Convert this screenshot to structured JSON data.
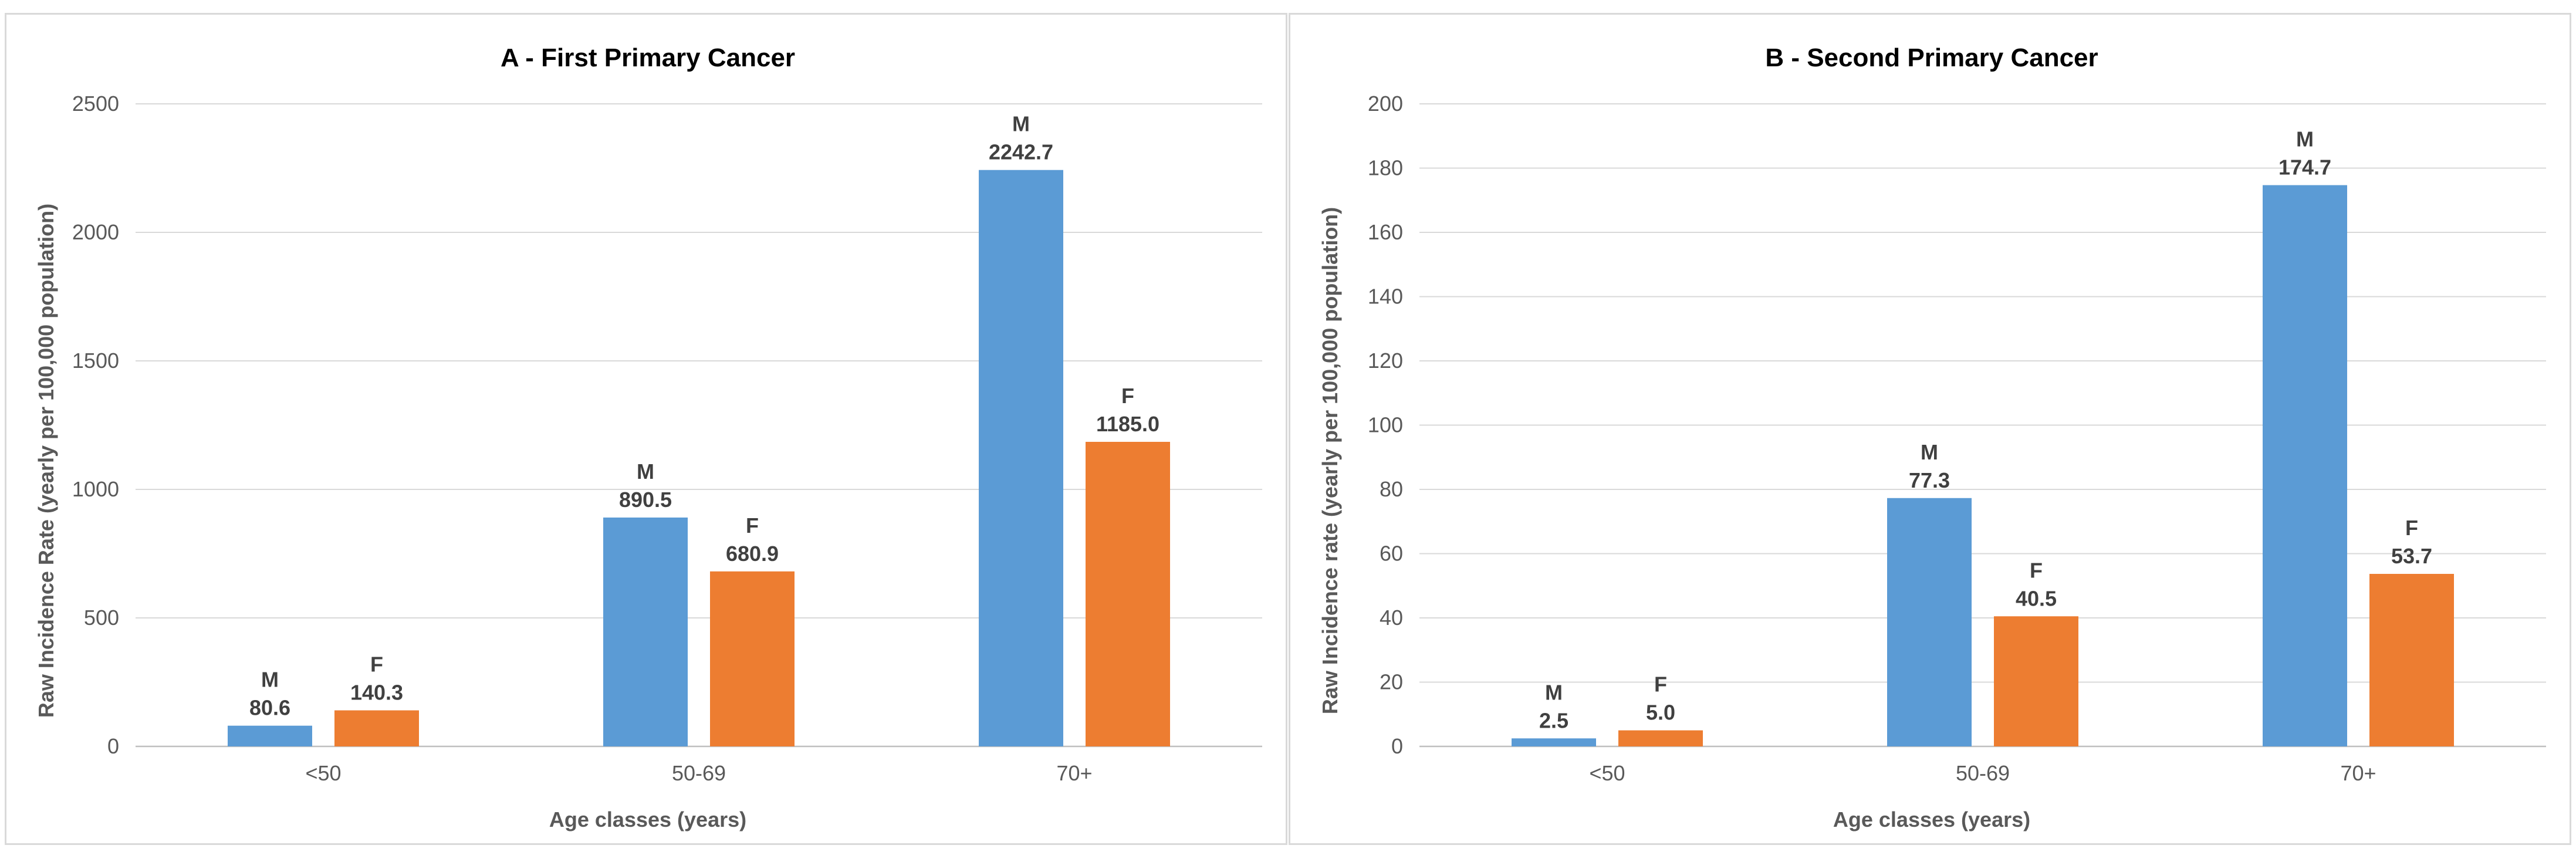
{
  "chart_data": [
    {
      "type": "bar",
      "title": "A - First Primary Cancer",
      "xlabel": "Age classes (years)",
      "ylabel": "Raw Incidence Rate (yearly per 100,000 population)",
      "categories": [
        "<50",
        "50-69",
        "70+"
      ],
      "ylim": [
        0,
        2500
      ],
      "yticks": [
        "0",
        "500",
        "1000",
        "1500",
        "2000",
        "2500"
      ],
      "ytick_values": [
        0,
        500,
        1000,
        1500,
        2000,
        2500
      ],
      "grid": true,
      "series": [
        {
          "name": "M",
          "color": "#5b9bd5",
          "values": [
            80.6,
            890.5,
            2242.7
          ],
          "labels": [
            "80.6",
            "890.5",
            "2242.7"
          ]
        },
        {
          "name": "F",
          "color": "#ed7d31",
          "values": [
            140.3,
            680.9,
            1185.0
          ],
          "labels": [
            "140.3",
            "680.9",
            "1185.0"
          ]
        }
      ]
    },
    {
      "type": "bar",
      "title": "B - Second Primary Cancer",
      "xlabel": "Age classes (years)",
      "ylabel": "Raw Incidence rate (yearly per 100,000 population)",
      "categories": [
        "<50",
        "50-69",
        "70+"
      ],
      "ylim": [
        0,
        200
      ],
      "yticks": [
        "0",
        "20",
        "40",
        "60",
        "80",
        "100",
        "120",
        "140",
        "160",
        "180",
        "200"
      ],
      "ytick_values": [
        0,
        20,
        40,
        60,
        80,
        100,
        120,
        140,
        160,
        180,
        200
      ],
      "grid": true,
      "series": [
        {
          "name": "M",
          "color": "#5b9bd5",
          "values": [
            2.5,
            77.3,
            174.7
          ],
          "labels": [
            "2.5",
            "77.3",
            "174.7"
          ]
        },
        {
          "name": "F",
          "color": "#ed7d31",
          "values": [
            5.0,
            40.5,
            53.7
          ],
          "labels": [
            "5.0",
            "40.5",
            "53.7"
          ]
        }
      ]
    }
  ]
}
